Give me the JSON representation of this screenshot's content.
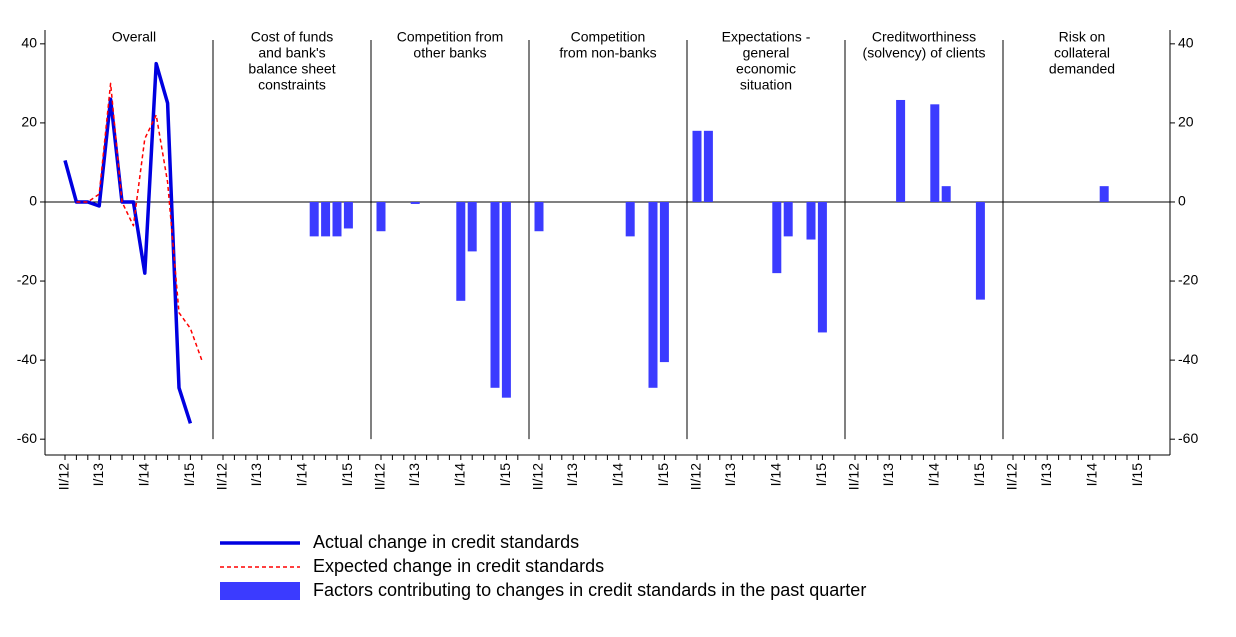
{
  "chart_data": {
    "type": "bar",
    "categories": [
      "II/12",
      null,
      null,
      "I/13",
      null,
      null,
      null,
      "I/14",
      null,
      null,
      null,
      "I/15",
      null
    ],
    "ylim": [
      -64,
      43.5
    ],
    "yticks": [
      -60,
      -40,
      -20,
      0,
      20,
      40
    ],
    "y2lim": [
      -64,
      43.5
    ],
    "y2ticks": [
      -60,
      -40,
      -20,
      0,
      20,
      40
    ],
    "bar_series": {
      "name": "Factors contributing to changes in credit standards in the past quarter",
      "color": "#3b3bff"
    },
    "panels": [
      {
        "type": "line",
        "title": [
          "Overall"
        ],
        "series": [
          {
            "name": "Actual change in credit standards",
            "color": "#0000e0",
            "style": "solid",
            "values": [
              10.5,
              0,
              0,
              -1,
              26,
              0,
              0,
              -18,
              35,
              25,
              -47,
              -56,
              null
            ]
          },
          {
            "name": "Expected change in credit standards",
            "color": "#ff0000",
            "style": "dashed",
            "values": [
              null,
              0,
              0,
              2,
              30,
              0,
              -6,
              16,
              22,
              5,
              -28,
              -32,
              -40
            ]
          }
        ]
      },
      {
        "title": [
          "Cost of funds",
          "and bank's",
          "balance sheet",
          "constraints"
        ],
        "values": [
          null,
          null,
          null,
          null,
          null,
          null,
          null,
          null,
          -8.7,
          -8.7,
          -8.7,
          -6.7,
          null
        ]
      },
      {
        "title": [
          "Competition from",
          "other banks"
        ],
        "values": [
          -7.4,
          null,
          null,
          -0.5,
          null,
          null,
          null,
          -25,
          -12.5,
          null,
          -47,
          -49.5,
          null
        ]
      },
      {
        "title": [
          "Competition",
          "from non-banks"
        ],
        "values": [
          -7.4,
          null,
          null,
          null,
          null,
          null,
          null,
          null,
          -8.7,
          null,
          -47,
          -40.5,
          null
        ]
      },
      {
        "title": [
          "Expectations -",
          "general",
          "economic",
          "situation"
        ],
        "values": [
          18,
          18,
          null,
          null,
          null,
          null,
          null,
          -18,
          -8.7,
          null,
          -9.5,
          -33,
          null
        ]
      },
      {
        "title": [
          "Creditworthiness",
          "(solvency) of clients"
        ],
        "values": [
          null,
          null,
          null,
          null,
          25.8,
          null,
          null,
          24.7,
          4,
          null,
          null,
          -24.7,
          null
        ]
      },
      {
        "title": [
          "Risk on",
          "collateral",
          "demanded"
        ],
        "values": [
          null,
          null,
          null,
          null,
          null,
          null,
          null,
          null,
          4,
          null,
          null,
          null,
          null
        ]
      }
    ]
  }
}
